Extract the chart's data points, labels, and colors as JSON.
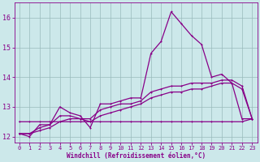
{
  "xlabel": "Windchill (Refroidissement éolien,°C)",
  "background_color": "#cce8ea",
  "line_color": "#880088",
  "grid_color": "#99bbbb",
  "hours": [
    0,
    1,
    2,
    3,
    4,
    5,
    6,
    7,
    8,
    9,
    10,
    11,
    12,
    13,
    14,
    15,
    16,
    17,
    18,
    19,
    20,
    21,
    22,
    23
  ],
  "temp": [
    12.1,
    12.0,
    12.4,
    12.4,
    13.0,
    12.8,
    12.7,
    12.3,
    13.1,
    13.1,
    13.2,
    13.3,
    13.3,
    14.8,
    15.2,
    16.2,
    15.8,
    15.4,
    15.1,
    14.0,
    14.1,
    13.8,
    12.6,
    12.6
  ],
  "min_flat": [
    12.5,
    12.5,
    12.5,
    12.5,
    12.5,
    12.5,
    12.5,
    12.5,
    12.5,
    12.5,
    12.5,
    12.5,
    12.5,
    12.5,
    12.5,
    12.5,
    12.5,
    12.5,
    12.5,
    12.5,
    12.5,
    12.5,
    12.5,
    12.6
  ],
  "grad1": [
    12.1,
    12.1,
    12.2,
    12.3,
    12.5,
    12.6,
    12.6,
    12.5,
    12.7,
    12.8,
    12.9,
    13.0,
    13.1,
    13.3,
    13.4,
    13.5,
    13.5,
    13.6,
    13.6,
    13.7,
    13.8,
    13.8,
    13.6,
    12.6
  ],
  "grad2": [
    12.1,
    12.1,
    12.3,
    12.4,
    12.7,
    12.7,
    12.6,
    12.6,
    12.9,
    13.0,
    13.1,
    13.1,
    13.2,
    13.5,
    13.6,
    13.7,
    13.7,
    13.8,
    13.8,
    13.8,
    13.9,
    13.9,
    13.7,
    12.6
  ],
  "ylim": [
    11.8,
    16.5
  ],
  "yticks": [
    12,
    13,
    14,
    15,
    16
  ],
  "xlim": [
    -0.5,
    23.5
  ],
  "xticks": [
    0,
    1,
    2,
    3,
    4,
    5,
    6,
    7,
    8,
    9,
    10,
    11,
    12,
    13,
    14,
    15,
    16,
    17,
    18,
    19,
    20,
    21,
    22,
    23
  ]
}
